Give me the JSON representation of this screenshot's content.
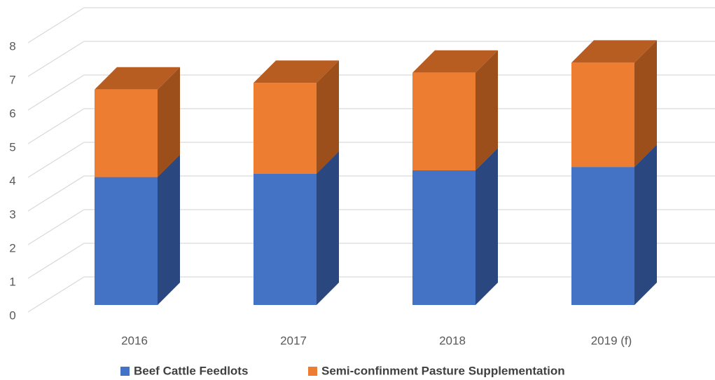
{
  "chart_data": {
    "type": "bar3d_stacked",
    "categories": [
      "2016",
      "2017",
      "2018",
      "2019 (f)"
    ],
    "series": [
      {
        "name": "Beef Cattle Feedlots",
        "color": "#4472c4",
        "side_color": "#2b4780",
        "top_color": "#3a62ab",
        "values": [
          3.8,
          3.9,
          4.0,
          4.1
        ]
      },
      {
        "name": "Semi-confinment Pasture Supplementation",
        "color": "#ed7d31",
        "side_color": "#9c4e1b",
        "top_color": "#b85d22",
        "values": [
          2.6,
          2.7,
          2.9,
          3.1
        ]
      }
    ],
    "ylim": [
      0,
      8
    ],
    "yticks": [
      0,
      1,
      2,
      3,
      4,
      5,
      6,
      7,
      8
    ],
    "grid": true,
    "legend": "bottom"
  }
}
